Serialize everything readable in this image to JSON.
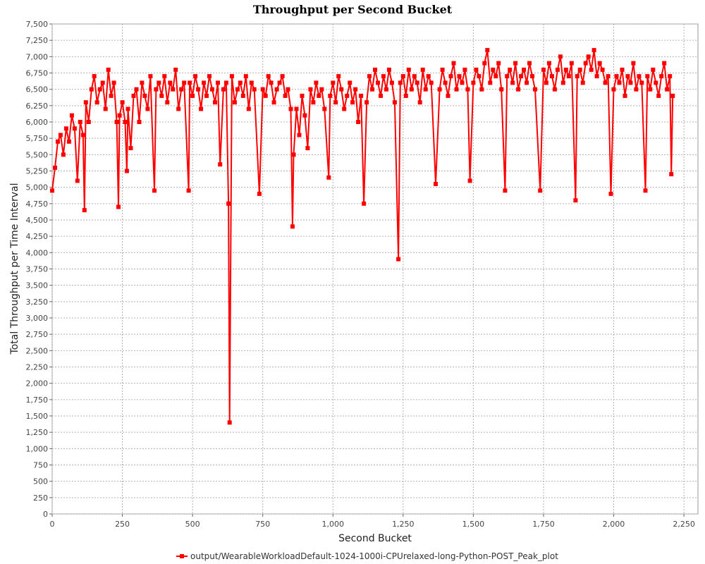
{
  "chart_data": {
    "type": "line",
    "title": "Throughput per Second Bucket",
    "xlabel": "Second Bucket",
    "ylabel": "Total Throughput per Time Interval",
    "xlim": [
      0,
      2300
    ],
    "ylim": [
      0,
      7500
    ],
    "x_ticks": [
      "0",
      "250",
      "500",
      "750",
      "1,000",
      "1,250",
      "1,500",
      "1,750",
      "2,000",
      "2,250"
    ],
    "y_ticks": [
      "0",
      "250",
      "500",
      "750",
      "1,000",
      "1,250",
      "1,500",
      "1,750",
      "2,000",
      "2,250",
      "2,500",
      "2,750",
      "3,000",
      "3,250",
      "3,500",
      "3,750",
      "4,000",
      "4,250",
      "4,500",
      "4,750",
      "5,000",
      "5,250",
      "5,500",
      "5,750",
      "6,000",
      "6,250",
      "6,500",
      "6,750",
      "7,000",
      "7,250",
      "7,500"
    ],
    "grid": true,
    "legend_position": "bottom",
    "series": [
      {
        "name": "output/WearableWorkloadDefault-1024-1000i-CPUrelaxed-long-Python-POST_Peak_plot",
        "color": "#ff0000",
        "x": [
          0,
          10,
          20,
          30,
          40,
          50,
          60,
          70,
          80,
          90,
          100,
          110,
          115,
          120,
          130,
          140,
          150,
          160,
          170,
          180,
          190,
          200,
          210,
          220,
          230,
          236,
          240,
          250,
          260,
          266,
          270,
          280,
          290,
          300,
          310,
          320,
          330,
          340,
          350,
          364,
          370,
          380,
          390,
          400,
          410,
          420,
          430,
          440,
          450,
          460,
          470,
          486,
          490,
          500,
          510,
          520,
          530,
          540,
          550,
          560,
          570,
          580,
          590,
          598,
          610,
          620,
          628,
          632,
          640,
          650,
          660,
          670,
          680,
          690,
          700,
          710,
          720,
          738,
          750,
          760,
          770,
          780,
          790,
          800,
          810,
          820,
          830,
          840,
          850,
          856,
          860,
          870,
          880,
          890,
          900,
          910,
          920,
          930,
          940,
          950,
          960,
          970,
          985,
          990,
          1000,
          1010,
          1020,
          1030,
          1040,
          1050,
          1060,
          1070,
          1080,
          1090,
          1100,
          1110,
          1120,
          1130,
          1140,
          1150,
          1160,
          1170,
          1180,
          1190,
          1200,
          1210,
          1220,
          1233,
          1240,
          1250,
          1260,
          1270,
          1280,
          1290,
          1300,
          1310,
          1320,
          1330,
          1340,
          1350,
          1366,
          1380,
          1390,
          1400,
          1410,
          1420,
          1430,
          1440,
          1450,
          1460,
          1470,
          1480,
          1488,
          1500,
          1510,
          1520,
          1530,
          1540,
          1550,
          1560,
          1570,
          1580,
          1590,
          1600,
          1613,
          1620,
          1630,
          1640,
          1650,
          1660,
          1670,
          1680,
          1690,
          1700,
          1710,
          1720,
          1738,
          1750,
          1760,
          1770,
          1780,
          1790,
          1800,
          1810,
          1820,
          1830,
          1840,
          1850,
          1864,
          1870,
          1880,
          1890,
          1900,
          1910,
          1920,
          1930,
          1940,
          1950,
          1960,
          1970,
          1980,
          1990,
          2000,
          2010,
          2020,
          2030,
          2040,
          2050,
          2060,
          2070,
          2080,
          2090,
          2100,
          2113,
          2120,
          2130,
          2140,
          2150,
          2160,
          2170,
          2180,
          2190,
          2200,
          2205,
          2210
        ],
        "values": [
          4950,
          5300,
          5700,
          5800,
          5500,
          5900,
          5700,
          6100,
          5900,
          5100,
          6000,
          5800,
          4650,
          6300,
          6000,
          6500,
          6700,
          6300,
          6500,
          6600,
          6200,
          6800,
          6400,
          6600,
          6000,
          4700,
          6100,
          6300,
          6000,
          5250,
          6200,
          5600,
          6400,
          6500,
          6000,
          6600,
          6400,
          6200,
          6700,
          4950,
          6500,
          6600,
          6400,
          6700,
          6300,
          6600,
          6500,
          6800,
          6200,
          6500,
          6600,
          4950,
          6600,
          6400,
          6700,
          6500,
          6200,
          6600,
          6400,
          6700,
          6500,
          6300,
          6600,
          5350,
          6500,
          6600,
          4750,
          1400,
          6700,
          6300,
          6500,
          6600,
          6400,
          6700,
          6200,
          6600,
          6500,
          4900,
          6500,
          6400,
          6700,
          6600,
          6300,
          6500,
          6600,
          6700,
          6400,
          6500,
          6200,
          4400,
          5500,
          6200,
          5800,
          6400,
          6100,
          5600,
          6500,
          6300,
          6600,
          6400,
          6500,
          6200,
          5150,
          6400,
          6600,
          6300,
          6700,
          6500,
          6200,
          6400,
          6600,
          6300,
          6500,
          6000,
          6400,
          4750,
          6300,
          6700,
          6500,
          6800,
          6600,
          6400,
          6700,
          6500,
          6800,
          6600,
          6300,
          3900,
          6600,
          6700,
          6400,
          6800,
          6500,
          6700,
          6600,
          6300,
          6800,
          6500,
          6700,
          6600,
          5050,
          6500,
          6800,
          6600,
          6400,
          6700,
          6900,
          6500,
          6700,
          6600,
          6800,
          6500,
          5100,
          6600,
          6800,
          6700,
          6500,
          6900,
          7100,
          6600,
          6800,
          6700,
          6900,
          6500,
          4950,
          6700,
          6800,
          6600,
          6900,
          6500,
          6700,
          6800,
          6600,
          6900,
          6700,
          6500,
          4950,
          6800,
          6600,
          6900,
          6700,
          6500,
          6800,
          7000,
          6600,
          6800,
          6700,
          6900,
          4800,
          6700,
          6800,
          6600,
          6900,
          7000,
          6800,
          7100,
          6700,
          6900,
          6800,
          6600,
          6700,
          4900,
          6500,
          6700,
          6600,
          6800,
          6400,
          6700,
          6600,
          6900,
          6500,
          6700,
          6600,
          4950,
          6700,
          6500,
          6800,
          6600,
          6400,
          6700,
          6900,
          6500,
          6700,
          5200,
          6400
        ]
      }
    ]
  }
}
